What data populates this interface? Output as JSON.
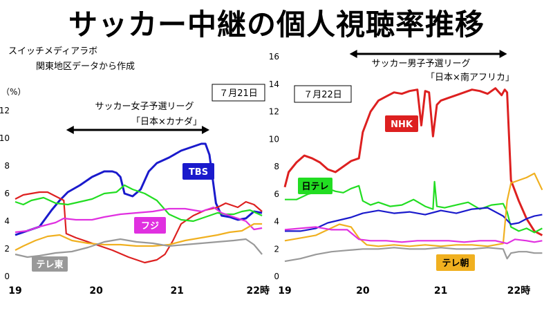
{
  "title": "サッカー中継の個人視聴率推移",
  "source_lines": [
    "スイッチメディアラボ",
    "関東地区データから作成"
  ],
  "unit_label": "（%）",
  "x_hour_suffix": "時",
  "colors": {
    "NHK": "#dd2020",
    "日テレ": "#22dd22",
    "TBS": "#1a1acc",
    "テレ朝": "#f0b020",
    "フジ": "#e030e0",
    "テレ東": "#999999"
  },
  "chart_data": [
    {
      "type": "line",
      "date_label": "７月21日",
      "annotation": [
        "サッカー女子予選リーグ",
        "「日本×カナダ」"
      ],
      "match_span_hours": [
        19.63,
        21.4
      ],
      "xlim": [
        19,
        22.1
      ],
      "ylim": [
        0,
        12
      ],
      "xticks": [
        19,
        20,
        21,
        22
      ],
      "yticks": [
        0,
        2,
        4,
        6,
        8,
        10,
        12
      ],
      "label_tags": [
        "TBS",
        "フジ",
        "テレ東"
      ],
      "series": [
        {
          "name": "TBS",
          "x": [
            19.0,
            19.15,
            19.3,
            19.45,
            19.55,
            19.65,
            19.8,
            19.95,
            20.1,
            20.2,
            20.25,
            20.3,
            20.35,
            20.45,
            20.55,
            20.65,
            20.75,
            20.9,
            21.05,
            21.2,
            21.3,
            21.35,
            21.4,
            21.48,
            21.55,
            21.65,
            21.75,
            21.85,
            21.95,
            22.05
          ],
          "y": [
            3.0,
            3.3,
            3.6,
            4.8,
            5.5,
            6.1,
            6.6,
            7.2,
            7.6,
            7.6,
            7.5,
            7.2,
            6.0,
            5.8,
            6.3,
            7.6,
            8.2,
            8.6,
            9.1,
            9.4,
            9.6,
            9.6,
            8.8,
            5.3,
            4.4,
            4.3,
            4.1,
            4.2,
            4.7,
            4.6
          ]
        },
        {
          "name": "NHK",
          "x": [
            19.0,
            19.1,
            19.2,
            19.3,
            19.4,
            19.5,
            19.6,
            19.63,
            19.75,
            20.0,
            20.2,
            20.4,
            20.6,
            20.75,
            20.85,
            20.95,
            21.05,
            21.2,
            21.35,
            21.5,
            21.6,
            21.75,
            21.85,
            21.95,
            22.05
          ],
          "y": [
            5.6,
            5.9,
            6.0,
            6.1,
            6.1,
            5.8,
            5.5,
            3.1,
            2.8,
            2.3,
            1.9,
            1.4,
            1.0,
            1.2,
            1.6,
            2.6,
            3.8,
            4.4,
            4.8,
            5.0,
            5.3,
            5.0,
            5.4,
            5.2,
            4.7
          ]
        },
        {
          "name": "日テレ",
          "x": [
            19.0,
            19.1,
            19.2,
            19.35,
            19.5,
            19.65,
            19.8,
            19.95,
            20.1,
            20.25,
            20.35,
            20.45,
            20.6,
            20.75,
            20.9,
            21.05,
            21.2,
            21.35,
            21.5,
            21.6,
            21.7,
            21.8,
            21.9,
            22.05
          ],
          "y": [
            5.4,
            5.2,
            5.5,
            5.7,
            5.3,
            5.2,
            5.4,
            5.6,
            6.0,
            6.1,
            6.6,
            6.3,
            6.0,
            5.5,
            4.5,
            4.1,
            4.0,
            4.3,
            4.6,
            4.5,
            4.5,
            4.7,
            4.8,
            4.4
          ]
        },
        {
          "name": "フジ",
          "x": [
            19.0,
            19.15,
            19.3,
            19.5,
            19.6,
            19.75,
            19.95,
            20.1,
            20.3,
            20.5,
            20.7,
            20.9,
            21.1,
            21.3,
            21.45,
            21.55,
            21.7,
            21.85,
            21.95,
            22.05
          ],
          "y": [
            3.2,
            3.3,
            3.6,
            3.9,
            4.2,
            4.1,
            4.1,
            4.3,
            4.5,
            4.6,
            4.7,
            4.9,
            4.9,
            4.7,
            5.0,
            4.6,
            4.3,
            4.0,
            3.4,
            3.5
          ]
        },
        {
          "name": "テレ朝",
          "x": [
            19.0,
            19.1,
            19.25,
            19.4,
            19.55,
            19.7,
            19.9,
            20.1,
            20.3,
            20.5,
            20.7,
            20.9,
            21.1,
            21.3,
            21.5,
            21.65,
            21.8,
            21.95,
            22.05
          ],
          "y": [
            1.9,
            2.2,
            2.6,
            2.9,
            3.0,
            2.6,
            2.4,
            2.3,
            2.3,
            2.2,
            2.2,
            2.3,
            2.6,
            2.8,
            3.0,
            3.2,
            3.3,
            3.8,
            3.8
          ]
        },
        {
          "name": "テレ東",
          "x": [
            19.0,
            19.15,
            19.3,
            19.5,
            19.7,
            19.9,
            20.1,
            20.3,
            20.5,
            20.7,
            20.9,
            21.1,
            21.3,
            21.5,
            21.7,
            21.85,
            21.95,
            22.05
          ],
          "y": [
            1.6,
            1.4,
            1.5,
            1.7,
            1.8,
            2.1,
            2.5,
            2.7,
            2.5,
            2.4,
            2.2,
            2.3,
            2.4,
            2.5,
            2.6,
            2.7,
            2.3,
            1.6
          ]
        }
      ]
    },
    {
      "type": "line",
      "date_label": "７月22日",
      "annotation": [
        "サッカー男子予選リーグ",
        "「日本×南アフリカ」"
      ],
      "match_span_hours": [
        19.83,
        21.85
      ],
      "xlim": [
        19,
        22.35
      ],
      "ylim": [
        0,
        16
      ],
      "xticks": [
        19,
        20,
        21,
        22
      ],
      "yticks": [
        0,
        2,
        4,
        6,
        8,
        10,
        12,
        14,
        16
      ],
      "label_tags": [
        "NHK",
        "日テレ",
        "テレ朝"
      ],
      "series": [
        {
          "name": "NHK",
          "x": [
            19.0,
            19.05,
            19.15,
            19.25,
            19.35,
            19.45,
            19.55,
            19.65,
            19.75,
            19.85,
            19.95,
            20.0,
            20.1,
            20.2,
            20.3,
            20.4,
            20.5,
            20.6,
            20.7,
            20.75,
            20.8,
            20.85,
            20.9,
            20.95,
            21.0,
            21.1,
            21.2,
            21.3,
            21.4,
            21.5,
            21.6,
            21.7,
            21.78,
            21.82,
            21.85,
            21.9,
            22.0,
            22.1,
            22.2,
            22.3
          ],
          "y": [
            6.5,
            7.6,
            8.3,
            8.8,
            8.6,
            8.3,
            7.8,
            7.6,
            8.0,
            8.4,
            8.6,
            10.5,
            12.0,
            12.8,
            13.1,
            13.4,
            13.3,
            13.5,
            13.6,
            11.0,
            13.5,
            13.4,
            10.2,
            12.5,
            12.8,
            13.0,
            13.2,
            13.4,
            13.6,
            13.5,
            13.3,
            13.7,
            13.2,
            13.6,
            13.4,
            7.0,
            5.5,
            4.2,
            3.3,
            3.0
          ]
        },
        {
          "name": "日テレ",
          "x": [
            19.0,
            19.15,
            19.3,
            19.45,
            19.55,
            19.65,
            19.75,
            19.85,
            19.95,
            20.0,
            20.1,
            20.2,
            20.35,
            20.5,
            20.65,
            20.8,
            20.9,
            20.92,
            20.95,
            21.05,
            21.2,
            21.35,
            21.5,
            21.65,
            21.8,
            21.85,
            21.9,
            22.0,
            22.1,
            22.2,
            22.3
          ],
          "y": [
            5.6,
            5.6,
            6.0,
            6.2,
            6.4,
            6.2,
            6.1,
            6.4,
            6.6,
            5.5,
            5.2,
            5.4,
            5.1,
            5.2,
            5.6,
            5.1,
            4.9,
            6.9,
            5.1,
            5.0,
            5.2,
            5.4,
            4.9,
            5.2,
            5.3,
            4.7,
            3.6,
            3.3,
            3.5,
            3.2,
            3.5
          ]
        },
        {
          "name": "TBS",
          "x": [
            19.0,
            19.2,
            19.4,
            19.55,
            19.7,
            19.85,
            20.0,
            20.2,
            20.4,
            20.6,
            20.8,
            21.0,
            21.2,
            21.4,
            21.6,
            21.7,
            21.8,
            21.9,
            22.0,
            22.1,
            22.2,
            22.3
          ],
          "y": [
            3.3,
            3.3,
            3.5,
            3.9,
            4.1,
            4.3,
            4.6,
            4.8,
            4.6,
            4.7,
            4.5,
            4.8,
            4.6,
            4.9,
            5.0,
            4.7,
            4.4,
            3.8,
            3.9,
            4.2,
            4.4,
            4.5
          ]
        },
        {
          "name": "テレ朝",
          "x": [
            19.0,
            19.2,
            19.4,
            19.55,
            19.7,
            19.85,
            19.95,
            20.05,
            20.2,
            20.4,
            20.6,
            20.8,
            21.0,
            21.2,
            21.4,
            21.6,
            21.8,
            21.85,
            21.9,
            22.0,
            22.1,
            22.2,
            22.3
          ],
          "y": [
            2.6,
            2.8,
            3.0,
            3.4,
            3.8,
            3.6,
            2.8,
            2.3,
            2.2,
            2.3,
            2.2,
            2.3,
            2.2,
            2.3,
            2.3,
            2.2,
            2.4,
            5.5,
            6.8,
            7.0,
            7.2,
            7.5,
            6.3
          ]
        },
        {
          "name": "フジ",
          "x": [
            19.0,
            19.2,
            19.4,
            19.6,
            19.8,
            19.95,
            20.1,
            20.3,
            20.5,
            20.7,
            20.9,
            21.1,
            21.3,
            21.5,
            21.7,
            21.85,
            21.95,
            22.1,
            22.2,
            22.3
          ],
          "y": [
            3.4,
            3.5,
            3.6,
            3.4,
            3.4,
            2.7,
            2.6,
            2.6,
            2.5,
            2.6,
            2.6,
            2.6,
            2.5,
            2.6,
            2.6,
            2.4,
            2.7,
            2.6,
            2.5,
            2.6
          ]
        },
        {
          "name": "テレ東",
          "x": [
            19.0,
            19.2,
            19.4,
            19.6,
            19.8,
            20.0,
            20.2,
            20.4,
            20.6,
            20.8,
            21.0,
            21.2,
            21.4,
            21.6,
            21.8,
            21.85,
            21.9,
            22.0,
            22.1,
            22.2,
            22.3
          ],
          "y": [
            1.1,
            1.3,
            1.6,
            1.8,
            1.9,
            2.0,
            2.0,
            2.1,
            2.0,
            2.0,
            2.1,
            2.0,
            2.0,
            2.1,
            2.0,
            1.3,
            1.7,
            1.8,
            1.8,
            1.7,
            1.7
          ]
        }
      ]
    }
  ]
}
